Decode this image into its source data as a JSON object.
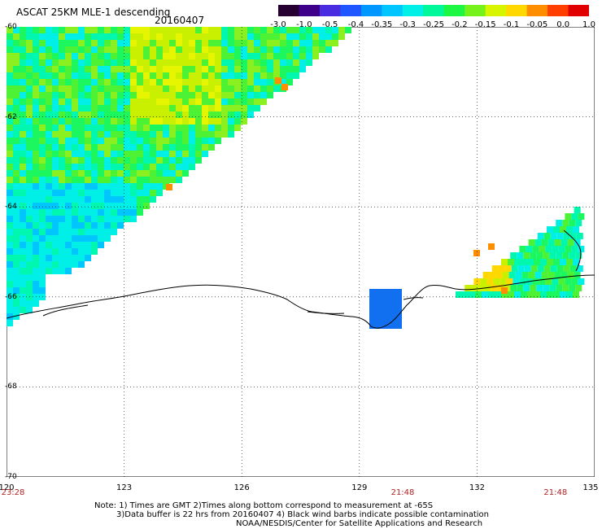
{
  "header": {
    "title": "ASCAT 25KM MLE-1 descending",
    "date": "20160407"
  },
  "colorbar": {
    "labels": [
      "-3.0",
      "-1.0",
      "-0.5",
      "-0.4",
      "-0.35",
      "-0.3",
      "-0.25",
      "-0.2",
      "-0.15",
      "-0.1",
      "-0.05",
      "0.0",
      "1.0"
    ],
    "colors": [
      "#250030",
      "#3f0089",
      "#4a2ce0",
      "#1f56ff",
      "#0097ff",
      "#00c6ff",
      "#00efe6",
      "#00f79a",
      "#1cf744",
      "#74f21a",
      "#d8f500",
      "#ffd800",
      "#ff8d00",
      "#ff3e00",
      "#e00000"
    ]
  },
  "map": {
    "lat_labels": [
      "-60",
      "-62",
      "-64",
      "-66",
      "-68",
      "-70"
    ],
    "lon_labels": [
      "120",
      "123",
      "126",
      "129",
      "132",
      "135"
    ],
    "times": [
      {
        "label": "23:28",
        "lon": 120
      },
      {
        "label": "21:48",
        "lon": 130
      },
      {
        "label": "21:48",
        "lon": 134
      }
    ],
    "land_patch_color": "#1070f0"
  },
  "footer": {
    "note1": "Note: 1) Times are GMT 2)Times along bottom correspond to measurement at -65S",
    "note2": "3)Data buffer is 22 hrs from 20160407 4) Black wind barbs indicate possible contamination",
    "credit": "NOAA/NESDIS/Center for Satellite Applications and Research"
  }
}
